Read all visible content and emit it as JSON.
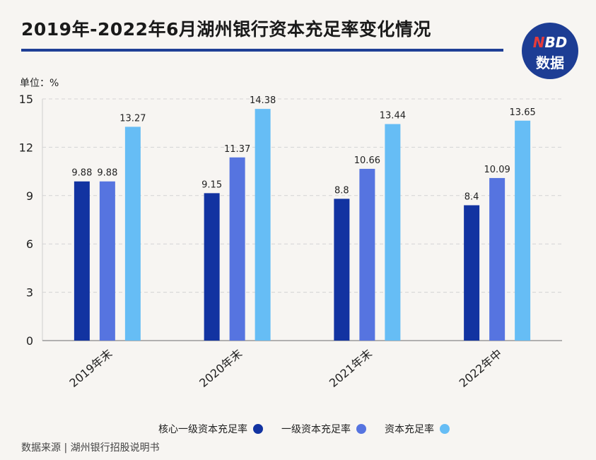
{
  "title": "2019年-2022年6月湖州银行资本充足率变化情况",
  "logo": {
    "line1_n": "N",
    "line1_rest": "BD",
    "line2": "数据"
  },
  "unit_label": "单位：%",
  "source": "数据来源 | 湖州银行招股说明书",
  "colors": {
    "core_tier1": "#1233a1",
    "tier1": "#5674e0",
    "total": "#66bdf5",
    "title_rule": "#1f3f96"
  },
  "chart_data": {
    "type": "bar",
    "categories": [
      "2019年末",
      "2020年末",
      "2021年末",
      "2022年中"
    ],
    "series": [
      {
        "name": "核心一级资本充足率",
        "values": [
          9.88,
          9.15,
          8.8,
          8.4
        ]
      },
      {
        "name": "一级资本充足率",
        "values": [
          9.88,
          11.37,
          10.66,
          10.09
        ]
      },
      {
        "name": "资本充足率",
        "values": [
          13.27,
          14.38,
          13.44,
          13.65
        ]
      }
    ],
    "value_labels": [
      [
        "9.88",
        "9.15",
        "8.8",
        "8.4"
      ],
      [
        "9.88",
        "11.37",
        "10.66",
        "10.09"
      ],
      [
        "13.27",
        "14.38",
        "13.44",
        "13.65"
      ]
    ],
    "ylim": [
      0,
      15
    ],
    "yticks": [
      0,
      3,
      6,
      9,
      12,
      15
    ],
    "grid": true,
    "legend_position": "bottom"
  }
}
